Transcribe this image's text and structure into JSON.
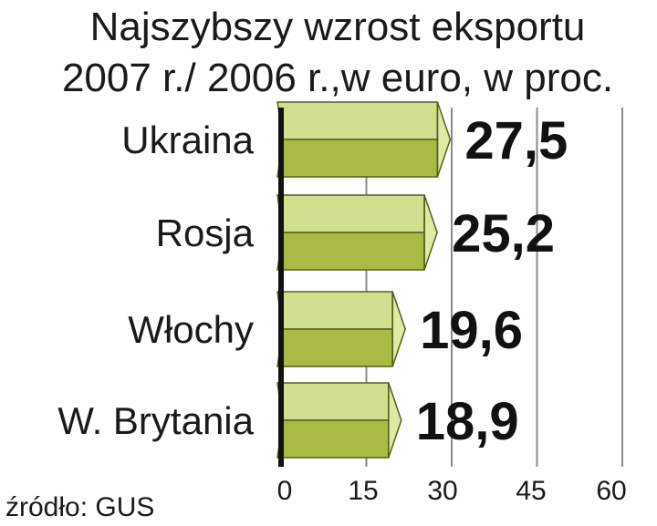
{
  "chart_data": {
    "type": "bar",
    "orientation": "horizontal",
    "title_lines": [
      "Najszybszy wzrost eksportu",
      "2007 r./ 2006 r.,w euro, w proc."
    ],
    "categories": [
      "Ukraina",
      "Rosja",
      "Włochy",
      "W. Brytania"
    ],
    "values": [
      27.5,
      25.2,
      19.6,
      18.9
    ],
    "value_labels": [
      "27,5",
      "25,2",
      "19,6",
      "18,9"
    ],
    "xlim": [
      0,
      60
    ],
    "xticks": [
      0,
      15,
      30,
      45,
      60
    ],
    "grid": true,
    "source": "źródło: GUS",
    "colors": {
      "bar_top": "#cfdf8e",
      "bar_bottom": "#a9bb45",
      "bar_cap": "#dfe9a6",
      "outline": "#555f1a",
      "grid": "#8a8a8a",
      "axis": "#111111",
      "text": "#1a1a1a"
    }
  }
}
